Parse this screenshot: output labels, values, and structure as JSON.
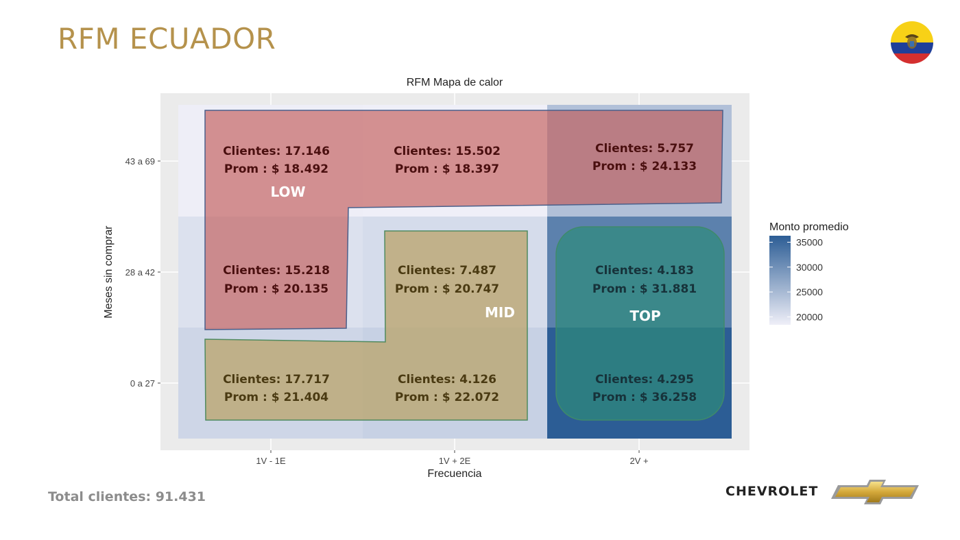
{
  "slide": {
    "title": "RFM ECUADOR",
    "total_clientes": "Total clientes: 91.431",
    "brand": "CHEVROLET"
  },
  "chart_data": {
    "type": "heatmap",
    "title": "RFM Mapa de calor",
    "xlabel": "Frecuencia",
    "ylabel": "Meses sin comprar",
    "x_categories": [
      "1V - 1E",
      "1V + 2E",
      "2V +"
    ],
    "y_categories": [
      "0 a 27",
      "28 a 42",
      "43 a 69"
    ],
    "legend": {
      "title": "Monto promedio",
      "ticks": [
        20000,
        25000,
        30000,
        35000
      ],
      "range": [
        18400,
        36300
      ],
      "placement": "right",
      "color_low": "#efeff8",
      "color_high": "#2c5d95"
    },
    "cells": [
      {
        "x": "1V - 1E",
        "y": "43 a 69",
        "clientes": "Clientes: 17.146",
        "prom": "Prom : $ 18.492",
        "value": 18492
      },
      {
        "x": "1V + 2E",
        "y": "43 a 69",
        "clientes": "Clientes: 15.502",
        "prom": "Prom : $ 18.397",
        "value": 18397
      },
      {
        "x": "2V +",
        "y": "43 a 69",
        "clientes": "Clientes: 5.757",
        "prom": "Prom : $ 24.133",
        "value": 24133
      },
      {
        "x": "1V - 1E",
        "y": "28 a 42",
        "clientes": "Clientes: 15.218",
        "prom": "Prom : $ 20.135",
        "value": 20135
      },
      {
        "x": "1V + 2E",
        "y": "28 a 42",
        "clientes": "Clientes: 7.487",
        "prom": "Prom :  $ 20.747",
        "value": 20747
      },
      {
        "x": "2V +",
        "y": "28 a 42",
        "clientes": "Clientes: 4.183",
        "prom": "Prom : $ 31.881",
        "value": 31881
      },
      {
        "x": "1V - 1E",
        "y": "0 a 27",
        "clientes": "Clientes: 17.717",
        "prom": "Prom : $ 21.404",
        "value": 21404
      },
      {
        "x": "1V + 2E",
        "y": "0 a 27",
        "clientes": "Clientes: 4.126",
        "prom": "Prom : $ 22.072",
        "value": 22072
      },
      {
        "x": "2V +",
        "y": "0 a 27",
        "clientes": "Clientes: 4.295",
        "prom": "Prom : $ 36.258",
        "value": 36258
      }
    ],
    "segments": [
      {
        "label": "LOW",
        "color": "#c0504d"
      },
      {
        "label": "MID",
        "color": "#b9a36a"
      },
      {
        "label": "TOP",
        "color": "#2e8b7a"
      }
    ]
  }
}
